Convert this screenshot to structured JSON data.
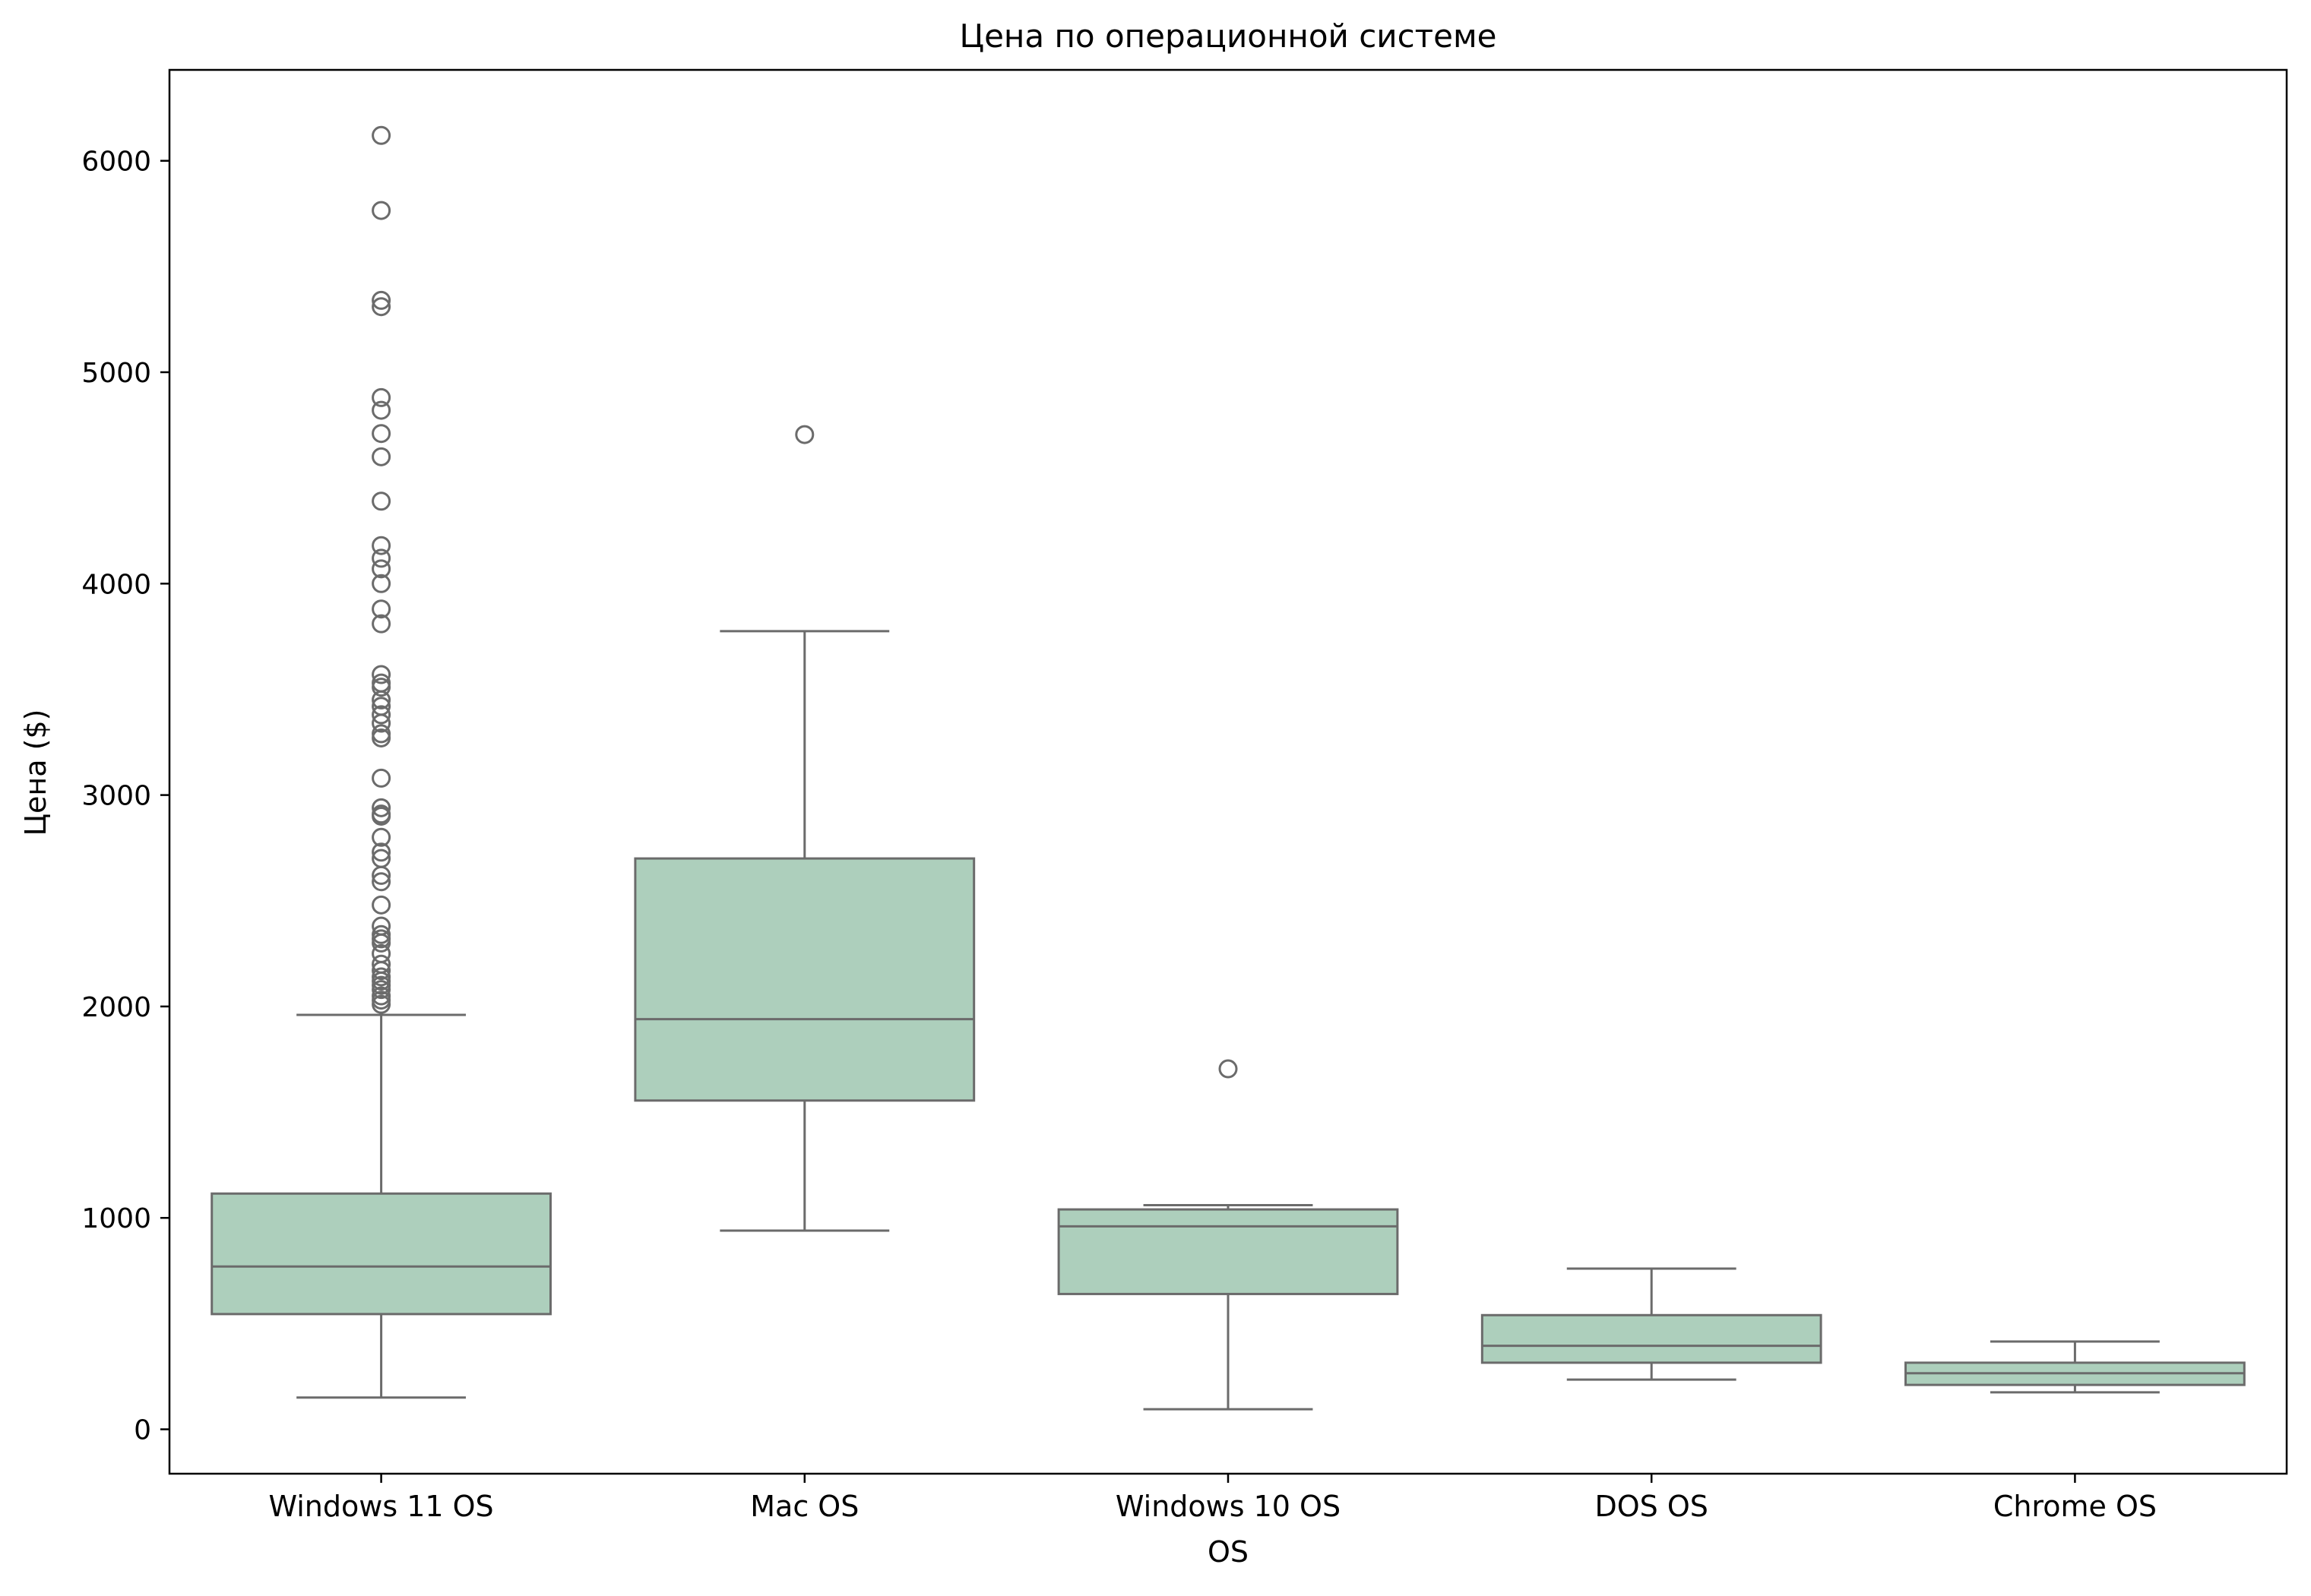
{
  "chart_data": {
    "type": "box",
    "title": "Цена по операционной системе",
    "xlabel": "OS",
    "ylabel": "Цена ($)",
    "ylim": [
      -210,
      6430
    ],
    "yticks": [
      0,
      1000,
      2000,
      3000,
      4000,
      5000,
      6000
    ],
    "grid": false,
    "colors": {
      "box_fill": "#adcfbc",
      "line": "#6b6b6b",
      "axis": "#000000"
    },
    "categories": [
      "Windows 11 OS",
      "Mac OS",
      "Windows 10 OS",
      "DOS OS",
      "Chrome OS"
    ],
    "boxes": [
      {
        "category": "Windows 11 OS",
        "whisker_low": 150,
        "q1": 545,
        "median": 770,
        "q3": 1115,
        "whisker_high": 1960,
        "outliers": [
          6120,
          5765,
          5340,
          5310,
          4880,
          4820,
          4710,
          4600,
          4390,
          4180,
          4120,
          4070,
          4000,
          3880,
          3810,
          3570,
          3530,
          3510,
          3450,
          3420,
          3380,
          3340,
          3290,
          3270,
          3080,
          2940,
          2910,
          2900,
          2800,
          2730,
          2700,
          2620,
          2590,
          2480,
          2380,
          2340,
          2320,
          2300,
          2250,
          2200,
          2170,
          2140,
          2120,
          2100,
          2080,
          2050,
          2030,
          2010
        ]
      },
      {
        "category": "Mac OS",
        "whisker_low": 940,
        "q1": 1555,
        "median": 1940,
        "q3": 2700,
        "whisker_high": 3775,
        "outliers": [
          4705
        ]
      },
      {
        "category": "Windows 10 OS",
        "whisker_low": 95,
        "q1": 640,
        "median": 960,
        "q3": 1040,
        "whisker_high": 1060,
        "outliers": [
          1705
        ]
      },
      {
        "category": "DOS OS",
        "whisker_low": 235,
        "q1": 315,
        "median": 395,
        "q3": 540,
        "whisker_high": 760,
        "outliers": []
      },
      {
        "category": "Chrome OS",
        "whisker_low": 175,
        "q1": 210,
        "median": 265,
        "q3": 315,
        "whisker_high": 415,
        "outliers": []
      }
    ]
  }
}
